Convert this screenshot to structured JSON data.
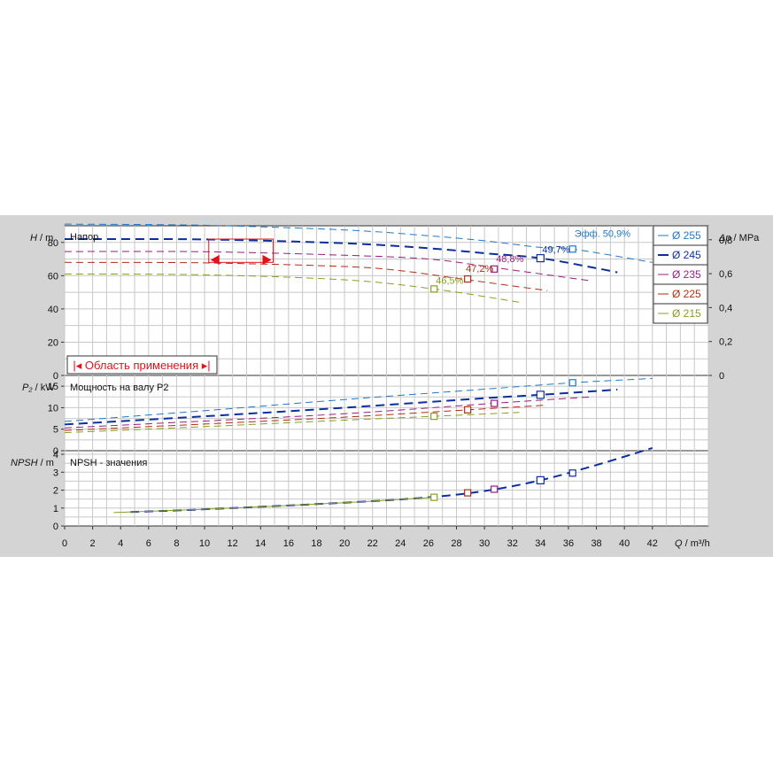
{
  "chart_data": {
    "type": "line",
    "x": {
      "label_var": "Q",
      "label_unit": " / m³/h",
      "range": [
        0,
        46
      ],
      "ticks": [
        0,
        2,
        4,
        6,
        8,
        10,
        12,
        14,
        16,
        18,
        20,
        22,
        24,
        26,
        28,
        30,
        32,
        34,
        36,
        38,
        40,
        42
      ]
    },
    "panels": {
      "head": {
        "title": "Напор",
        "ylabel_var": "H",
        "ylabel_unit": " / m",
        "ylim": [
          0,
          90
        ],
        "yticks": [
          0,
          20,
          40,
          60,
          80
        ],
        "right_label_var": "Δp",
        "right_label_unit": " / MPa",
        "right_ticks": [
          "0",
          "0,2",
          "0,4",
          "0,6",
          "0,8"
        ],
        "application_area_label": "Область применения",
        "efficiency_prefix": "Эфф."
      },
      "power": {
        "title": "Мощность на валу P2",
        "ylabel_var": "P₂",
        "ylabel_unit": " / kW",
        "ylim": [
          0,
          17.5
        ],
        "yticks": [
          0,
          5,
          10,
          15
        ]
      },
      "npsh": {
        "title": "NPSH - значения",
        "ylabel_var": "NPSH",
        "ylabel_unit": " / m",
        "ylim": [
          0,
          4.2
        ],
        "yticks": [
          0,
          1,
          2,
          3,
          4
        ]
      }
    },
    "series": [
      {
        "name": "Ø 255",
        "color": "#1f78c8",
        "width": 1,
        "head": [
          [
            0,
            91
          ],
          [
            10,
            90.3
          ],
          [
            20,
            87.5
          ],
          [
            26,
            84
          ],
          [
            30,
            81
          ],
          [
            34,
            77
          ],
          [
            36.3,
            76
          ],
          [
            42,
            68
          ]
        ],
        "power": [
          [
            0,
            6.8
          ],
          [
            10,
            9.3
          ],
          [
            20,
            11.9
          ],
          [
            30,
            14.3
          ],
          [
            36.3,
            15.8
          ],
          [
            42,
            16.8
          ]
        ],
        "eff_point": [
          36.3,
          76
        ],
        "eff_label": "50,9%",
        "power_point": [
          36.3,
          15.8
        ]
      },
      {
        "name": "Ø 245",
        "color": "#0d2f9e",
        "width": 2,
        "head": [
          [
            0,
            82
          ],
          [
            10,
            81.8
          ],
          [
            20,
            79.5
          ],
          [
            26,
            76.5
          ],
          [
            30,
            73.5
          ],
          [
            34,
            70.5
          ],
          [
            38,
            64.5
          ],
          [
            39.5,
            62
          ]
        ],
        "power": [
          [
            0,
            6.1
          ],
          [
            10,
            8
          ],
          [
            20,
            10
          ],
          [
            30,
            12.2
          ],
          [
            34,
            13
          ],
          [
            39.5,
            14.2
          ]
        ],
        "npsh": [
          [
            4.7,
            0.78
          ],
          [
            10,
            0.93
          ],
          [
            20,
            1.3
          ],
          [
            26,
            1.6
          ],
          [
            30,
            1.95
          ],
          [
            34,
            2.55
          ],
          [
            38,
            3.4
          ],
          [
            42,
            4.35
          ]
        ],
        "eff_point": [
          34,
          70.5
        ],
        "eff_label": "49,7%",
        "power_point": [
          34,
          13
        ],
        "npsh_point": [
          34,
          2.55
        ],
        "npsh_point2": [
          36.3,
          2.95
        ]
      },
      {
        "name": "Ø 235",
        "color": "#9b1c7f",
        "width": 1,
        "head": [
          [
            0,
            74.5
          ],
          [
            10,
            74.4
          ],
          [
            20,
            72.3
          ],
          [
            26,
            70
          ],
          [
            30.6,
            65
          ],
          [
            37.5,
            57
          ]
        ],
        "power": [
          [
            0,
            5.3
          ],
          [
            10,
            6.9
          ],
          [
            20,
            8.6
          ],
          [
            30.6,
            11
          ],
          [
            37.5,
            12.5
          ]
        ],
        "eff_point": [
          30.7,
          64
        ],
        "eff_label": "48,8%",
        "power_point": [
          30.7,
          11
        ],
        "npsh_point": [
          30.7,
          2.05
        ]
      },
      {
        "name": "Ø 225",
        "color": "#b02d12",
        "width": 1,
        "head": [
          [
            0,
            68
          ],
          [
            10,
            67.7
          ],
          [
            20,
            65.5
          ],
          [
            24,
            63
          ],
          [
            28.8,
            57.5
          ],
          [
            34.5,
            51
          ]
        ],
        "power": [
          [
            0,
            4.7
          ],
          [
            10,
            6.2
          ],
          [
            20,
            7.8
          ],
          [
            28.8,
            9.5
          ],
          [
            34.5,
            10.6
          ]
        ],
        "eff_point": [
          28.8,
          58
        ],
        "eff_label": "47,2%",
        "power_point": [
          28.8,
          9.5
        ],
        "npsh_point": [
          28.8,
          1.85
        ]
      },
      {
        "name": "Ø 215",
        "color": "#8a9e1c",
        "width": 1,
        "head": [
          [
            0,
            61
          ],
          [
            10,
            60.5
          ],
          [
            20,
            57.5
          ],
          [
            26.4,
            52
          ],
          [
            32.5,
            44
          ]
        ],
        "power": [
          [
            0,
            4.2
          ],
          [
            10,
            5.6
          ],
          [
            20,
            7.1
          ],
          [
            26.4,
            8
          ],
          [
            32.5,
            8.9
          ]
        ],
        "npsh": [
          [
            3.5,
            0.75
          ],
          [
            10,
            0.93
          ],
          [
            20,
            1.3
          ],
          [
            26.4,
            1.6
          ]
        ],
        "eff_point": [
          26.4,
          52
        ],
        "eff_label": "46,5%",
        "power_point": [
          26.4,
          8
        ],
        "npsh_point": [
          26.4,
          1.6
        ]
      }
    ]
  }
}
